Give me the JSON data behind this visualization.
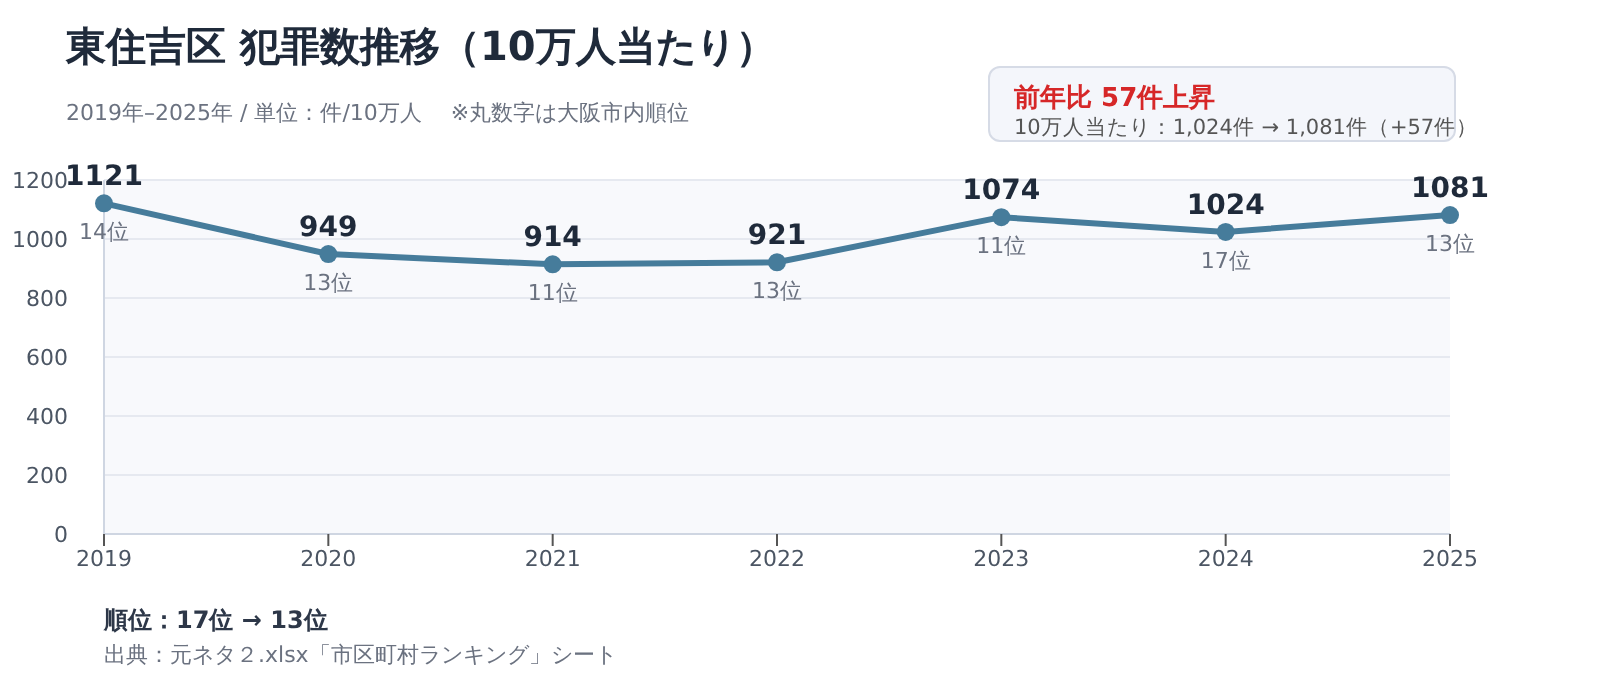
{
  "chart_data": {
    "type": "line",
    "title": "東住吉区  犯罪数推移（10万人当たり）",
    "subtitle": "2019年–2025年 / 単位：件/10万人　 ※丸数字は大阪市内順位",
    "categories": [
      "2019",
      "2020",
      "2021",
      "2022",
      "2023",
      "2024",
      "2025"
    ],
    "series": [
      {
        "color": "#467c9b",
        "values": [
          1121,
          949,
          914,
          921,
          1074,
          1024,
          1081
        ]
      }
    ],
    "ylim": [
      0,
      1200
    ],
    "yticks": [
      0,
      200,
      400,
      600,
      800,
      1000,
      1200
    ],
    "grid": "y",
    "marker": "circle",
    "line_style": "solid",
    "data_labels": true,
    "annotations": [
      {
        "text": "14位",
        "x": "2019",
        "y": 1121
      },
      {
        "text": "13位",
        "x": "2020",
        "y": 949
      },
      {
        "text": "11位",
        "x": "2021",
        "y": 914
      },
      {
        "text": "13位",
        "x": "2022",
        "y": 921
      },
      {
        "text": "11位",
        "x": "2023",
        "y": 1074
      },
      {
        "text": "17位",
        "x": "2024",
        "y": 1024
      },
      {
        "text": "13位",
        "x": "2025",
        "y": 1081
      },
      "前年比  57件上昇",
      "10万人当たり：1,024件 → 1,081件（+57件）",
      "順位：17位 → 13位",
      "出典：元ネタ２.xlsx「市区町村ランキング」シート"
    ]
  }
}
